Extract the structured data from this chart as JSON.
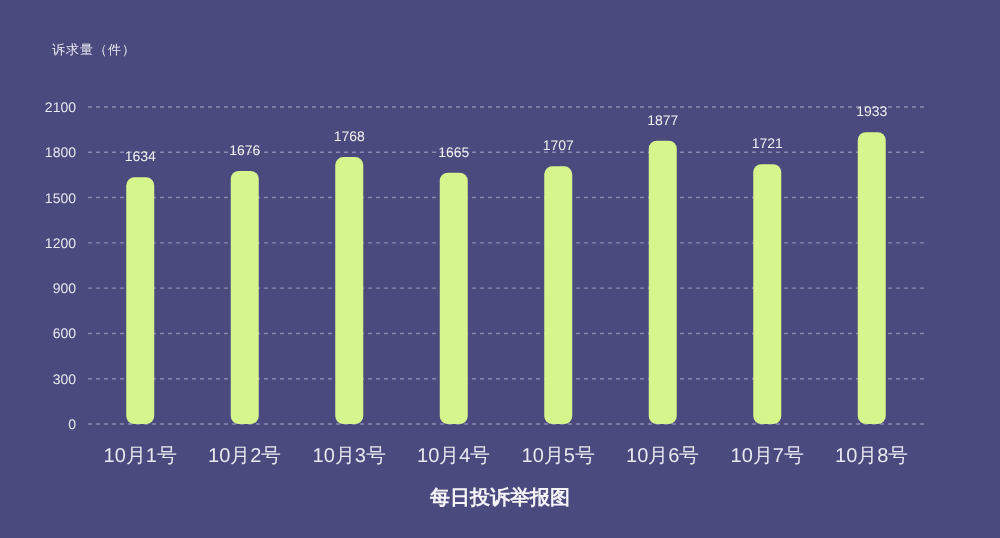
{
  "chart_data": {
    "type": "bar",
    "title": "每日投诉举报图",
    "ylabel": "诉求量（件）",
    "categories": [
      "10月1号",
      "10月2号",
      "10月3号",
      "10月4号",
      "10月5号",
      "10月6号",
      "10月7号",
      "10月8号"
    ],
    "values": [
      1634,
      1676,
      1768,
      1665,
      1707,
      1877,
      1721,
      1933
    ],
    "color": "#d6f58c",
    "ylim": [
      0,
      2100
    ],
    "yticks": [
      0,
      300,
      600,
      900,
      1200,
      1500,
      1800,
      2100
    ],
    "grid": "y",
    "data_labels": true
  }
}
